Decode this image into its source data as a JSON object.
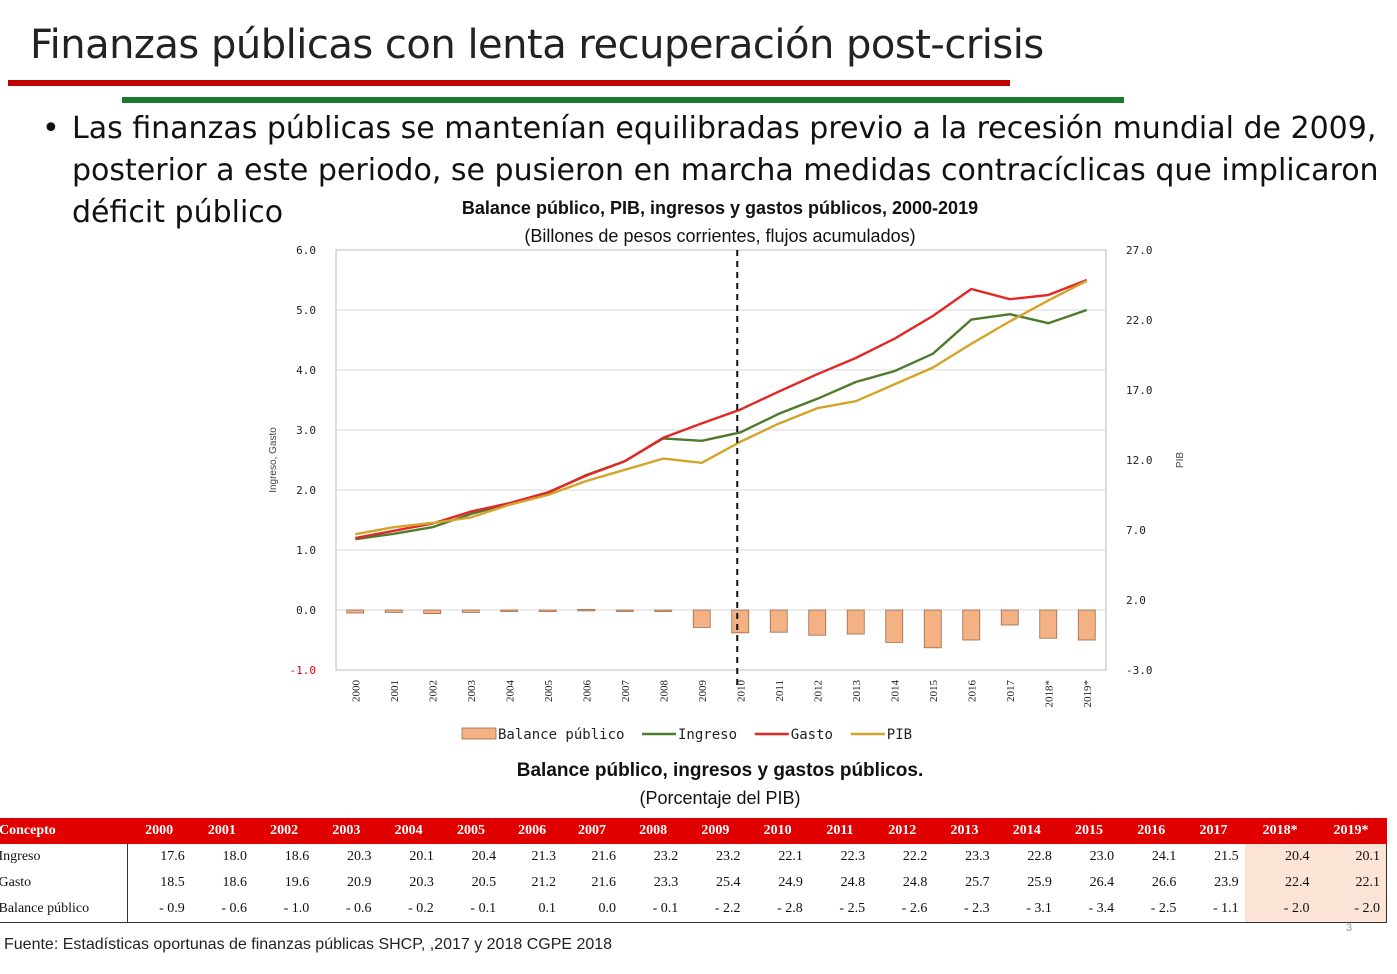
{
  "slide": {
    "title": "Finanzas públicas con lenta recuperación post-crisis",
    "bullet": "Las finanzas públicas se mantenían equilibradas previo a la recesión mundial de 2009, posterior a este periodo, se pusieron en marcha medidas contracíclicas que implicaron déficit público",
    "bullet_symbol": "•",
    "source": "Fuente: Estadísticas oportunas de finanzas públicas SHCP, ,2017 y 2018 CGPE 2018",
    "page_number": "3",
    "colors": {
      "red": "#c00000",
      "green": "#1a7a2e"
    }
  },
  "chart_data": {
    "type": "line",
    "title": "Balance público, PIB, ingresos y gastos públicos, 2000-2019",
    "subtitle": "(Billones de pesos corrientes, flujos acumulados)",
    "ylabel": "Ingreso, Gasto",
    "y2label": "PIB",
    "categories": [
      "2000",
      "2001",
      "2002",
      "2003",
      "2004",
      "2005",
      "2006",
      "2007",
      "2008",
      "2009",
      "2010",
      "2011",
      "2012",
      "2013",
      "2014",
      "2015",
      "2016",
      "2017",
      "2018*",
      "2019*"
    ],
    "ylim": [
      -1.0,
      6.0
    ],
    "y2lim": [
      -3.0,
      27.0
    ],
    "yticks": [
      "6.0",
      "5.0",
      "4.0",
      "3.0",
      "2.0",
      "1.0",
      "0.0",
      "-1.0"
    ],
    "y2ticks": [
      "27.0",
      "22.0",
      "17.0",
      "12.0",
      "7.0",
      "2.0",
      "-3.0"
    ],
    "marker_year": "2010",
    "grid": true,
    "legend_position": "bottom",
    "series": [
      {
        "name": "Balance público",
        "kind": "bar",
        "axis": "left",
        "color": "#f4b183",
        "values": [
          -0.05,
          -0.04,
          -0.06,
          -0.04,
          -0.01,
          -0.01,
          0.01,
          0.0,
          -0.01,
          -0.29,
          -0.38,
          -0.37,
          -0.42,
          -0.4,
          -0.54,
          -0.63,
          -0.5,
          -0.25,
          -0.47,
          -0.5
        ]
      },
      {
        "name": "Ingreso",
        "kind": "line",
        "axis": "left",
        "color": "#4e7a2e",
        "values": [
          1.18,
          1.27,
          1.38,
          1.6,
          1.77,
          1.95,
          2.25,
          2.48,
          2.86,
          2.82,
          2.96,
          3.27,
          3.52,
          3.8,
          3.98,
          4.27,
          4.84,
          4.93,
          4.78,
          5.0
        ]
      },
      {
        "name": "Gasto",
        "kind": "line",
        "axis": "left",
        "color": "#e32626",
        "values": [
          1.2,
          1.32,
          1.44,
          1.64,
          1.78,
          1.96,
          2.24,
          2.48,
          2.87,
          3.11,
          3.34,
          3.64,
          3.93,
          4.2,
          4.52,
          4.9,
          5.35,
          5.18,
          5.25,
          5.5
        ]
      },
      {
        "name": "PIB",
        "kind": "line",
        "axis": "right",
        "color": "#d4a42a",
        "values": [
          6.7,
          7.2,
          7.5,
          7.9,
          8.8,
          9.5,
          10.5,
          11.3,
          12.1,
          11.8,
          13.3,
          14.6,
          15.7,
          16.2,
          17.4,
          18.6,
          20.3,
          21.9,
          23.4,
          24.8
        ]
      }
    ]
  },
  "table": {
    "title": "Balance público, ingresos y gastos públicos.",
    "subtitle": "(Porcentaje del PIB)",
    "headers": [
      "Concepto",
      "2000",
      "2001",
      "2002",
      "2003",
      "2004",
      "2005",
      "2006",
      "2007",
      "2008",
      "2009",
      "2010",
      "2011",
      "2012",
      "2013",
      "2014",
      "2015",
      "2016",
      "2017",
      "2018*",
      "2019*"
    ],
    "rows": [
      {
        "label": "Ingreso",
        "values": [
          "17.6",
          "18.0",
          "18.6",
          "20.3",
          "20.1",
          "20.4",
          "21.3",
          "21.6",
          "23.2",
          "23.2",
          "22.1",
          "22.3",
          "22.2",
          "23.3",
          "22.8",
          "23.0",
          "24.1",
          "21.5",
          "20.4",
          "20.1"
        ]
      },
      {
        "label": "Gasto",
        "values": [
          "18.5",
          "18.6",
          "19.6",
          "20.9",
          "20.3",
          "20.5",
          "21.2",
          "21.6",
          "23.3",
          "25.4",
          "24.9",
          "24.8",
          "24.8",
          "25.7",
          "25.9",
          "26.4",
          "26.6",
          "23.9",
          "22.4",
          "22.1"
        ]
      },
      {
        "label": "Balance público",
        "values": [
          "- 0.9",
          "- 0.6",
          "- 1.0",
          "- 0.6",
          "- 0.2",
          "- 0.1",
          "0.1",
          "0.0",
          "- 0.1",
          "- 2.2",
          "- 2.8",
          "- 2.5",
          "- 2.6",
          "- 2.3",
          "- 3.1",
          "- 3.4",
          "- 2.5",
          "- 1.1",
          "- 2.0",
          "- 2.0"
        ]
      }
    ]
  }
}
